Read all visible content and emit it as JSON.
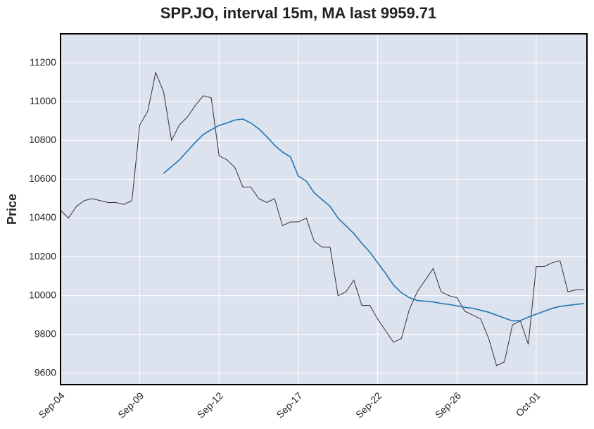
{
  "chart_data": {
    "type": "line",
    "title": "SPP.JO, interval 15m, MA last 9959.71",
    "y_label": "Price",
    "x": [
      0,
      5,
      10,
      15,
      20,
      25,
      30,
      35,
      40,
      45,
      50,
      55,
      60,
      65,
      70,
      75,
      80,
      85,
      90,
      95,
      100,
      105,
      110,
      115,
      120,
      125,
      130,
      135,
      140,
      145,
      150,
      155,
      160,
      165,
      170,
      175,
      180,
      185,
      190,
      195,
      200,
      205,
      210,
      215,
      220,
      225,
      230,
      235,
      240,
      245,
      250,
      255,
      260,
      265,
      270,
      275,
      280,
      285,
      290,
      295,
      300,
      305,
      310,
      315,
      320,
      325,
      330
    ],
    "series": [
      {
        "color": "#333333",
        "values": [
          10440,
          10400,
          10460,
          10490,
          10500,
          10490,
          10480,
          10480,
          10470,
          10490,
          10880,
          10950,
          11150,
          11050,
          10800,
          10880,
          10920,
          10980,
          11030,
          11020,
          10720,
          10700,
          10660,
          10560,
          10560,
          10500,
          10480,
          10500,
          10360,
          10380,
          10380,
          10400,
          10280,
          10250,
          10250,
          10000,
          10020,
          10080,
          9950,
          9950,
          9880,
          9820,
          9760,
          9780,
          9930,
          10020,
          10080,
          10140,
          10020,
          10000,
          9990,
          9920,
          9900,
          9880,
          9780,
          9640,
          9660,
          9850,
          9870,
          9750,
          10150,
          10150,
          10170,
          10180,
          10020,
          10030,
          10030
        ]
      },
      {
        "color": "#1f77b4",
        "values": [
          null,
          null,
          null,
          null,
          null,
          null,
          null,
          null,
          null,
          null,
          null,
          null,
          null,
          10630,
          10665,
          10700,
          10745,
          10790,
          10830,
          10855,
          10877,
          10890,
          10905,
          10910,
          10890,
          10860,
          10820,
          10775,
          10740,
          10715,
          10616,
          10590,
          10530,
          10495,
          10460,
          10400,
          10360,
          10320,
          10270,
          10225,
          10170,
          10115,
          10055,
          10015,
          9990,
          9975,
          9972,
          9968,
          9960,
          9955,
          9948,
          9940,
          9935,
          9925,
          9915,
          9900,
          9885,
          9870,
          9872,
          9890,
          9905,
          9920,
          9935,
          9945,
          9950,
          9955,
          9959.71
        ]
      }
    ],
    "xlim": [
      0,
      332
    ],
    "xticks": [
      {
        "value": 0,
        "label": "Sep-04"
      },
      {
        "value": 50,
        "label": "Sep-09"
      },
      {
        "value": 100,
        "label": "Sep-12"
      },
      {
        "value": 150,
        "label": "Sep-17"
      },
      {
        "value": 200,
        "label": "Sep-22"
      },
      {
        "value": 250,
        "label": "Sep-26"
      },
      {
        "value": 300,
        "label": "Oct-01"
      }
    ],
    "ylim": [
      9542,
      11349
    ],
    "yticks": [
      9600,
      9800,
      10000,
      10200,
      10400,
      10600,
      10800,
      11000,
      11200
    ],
    "grid": true
  }
}
